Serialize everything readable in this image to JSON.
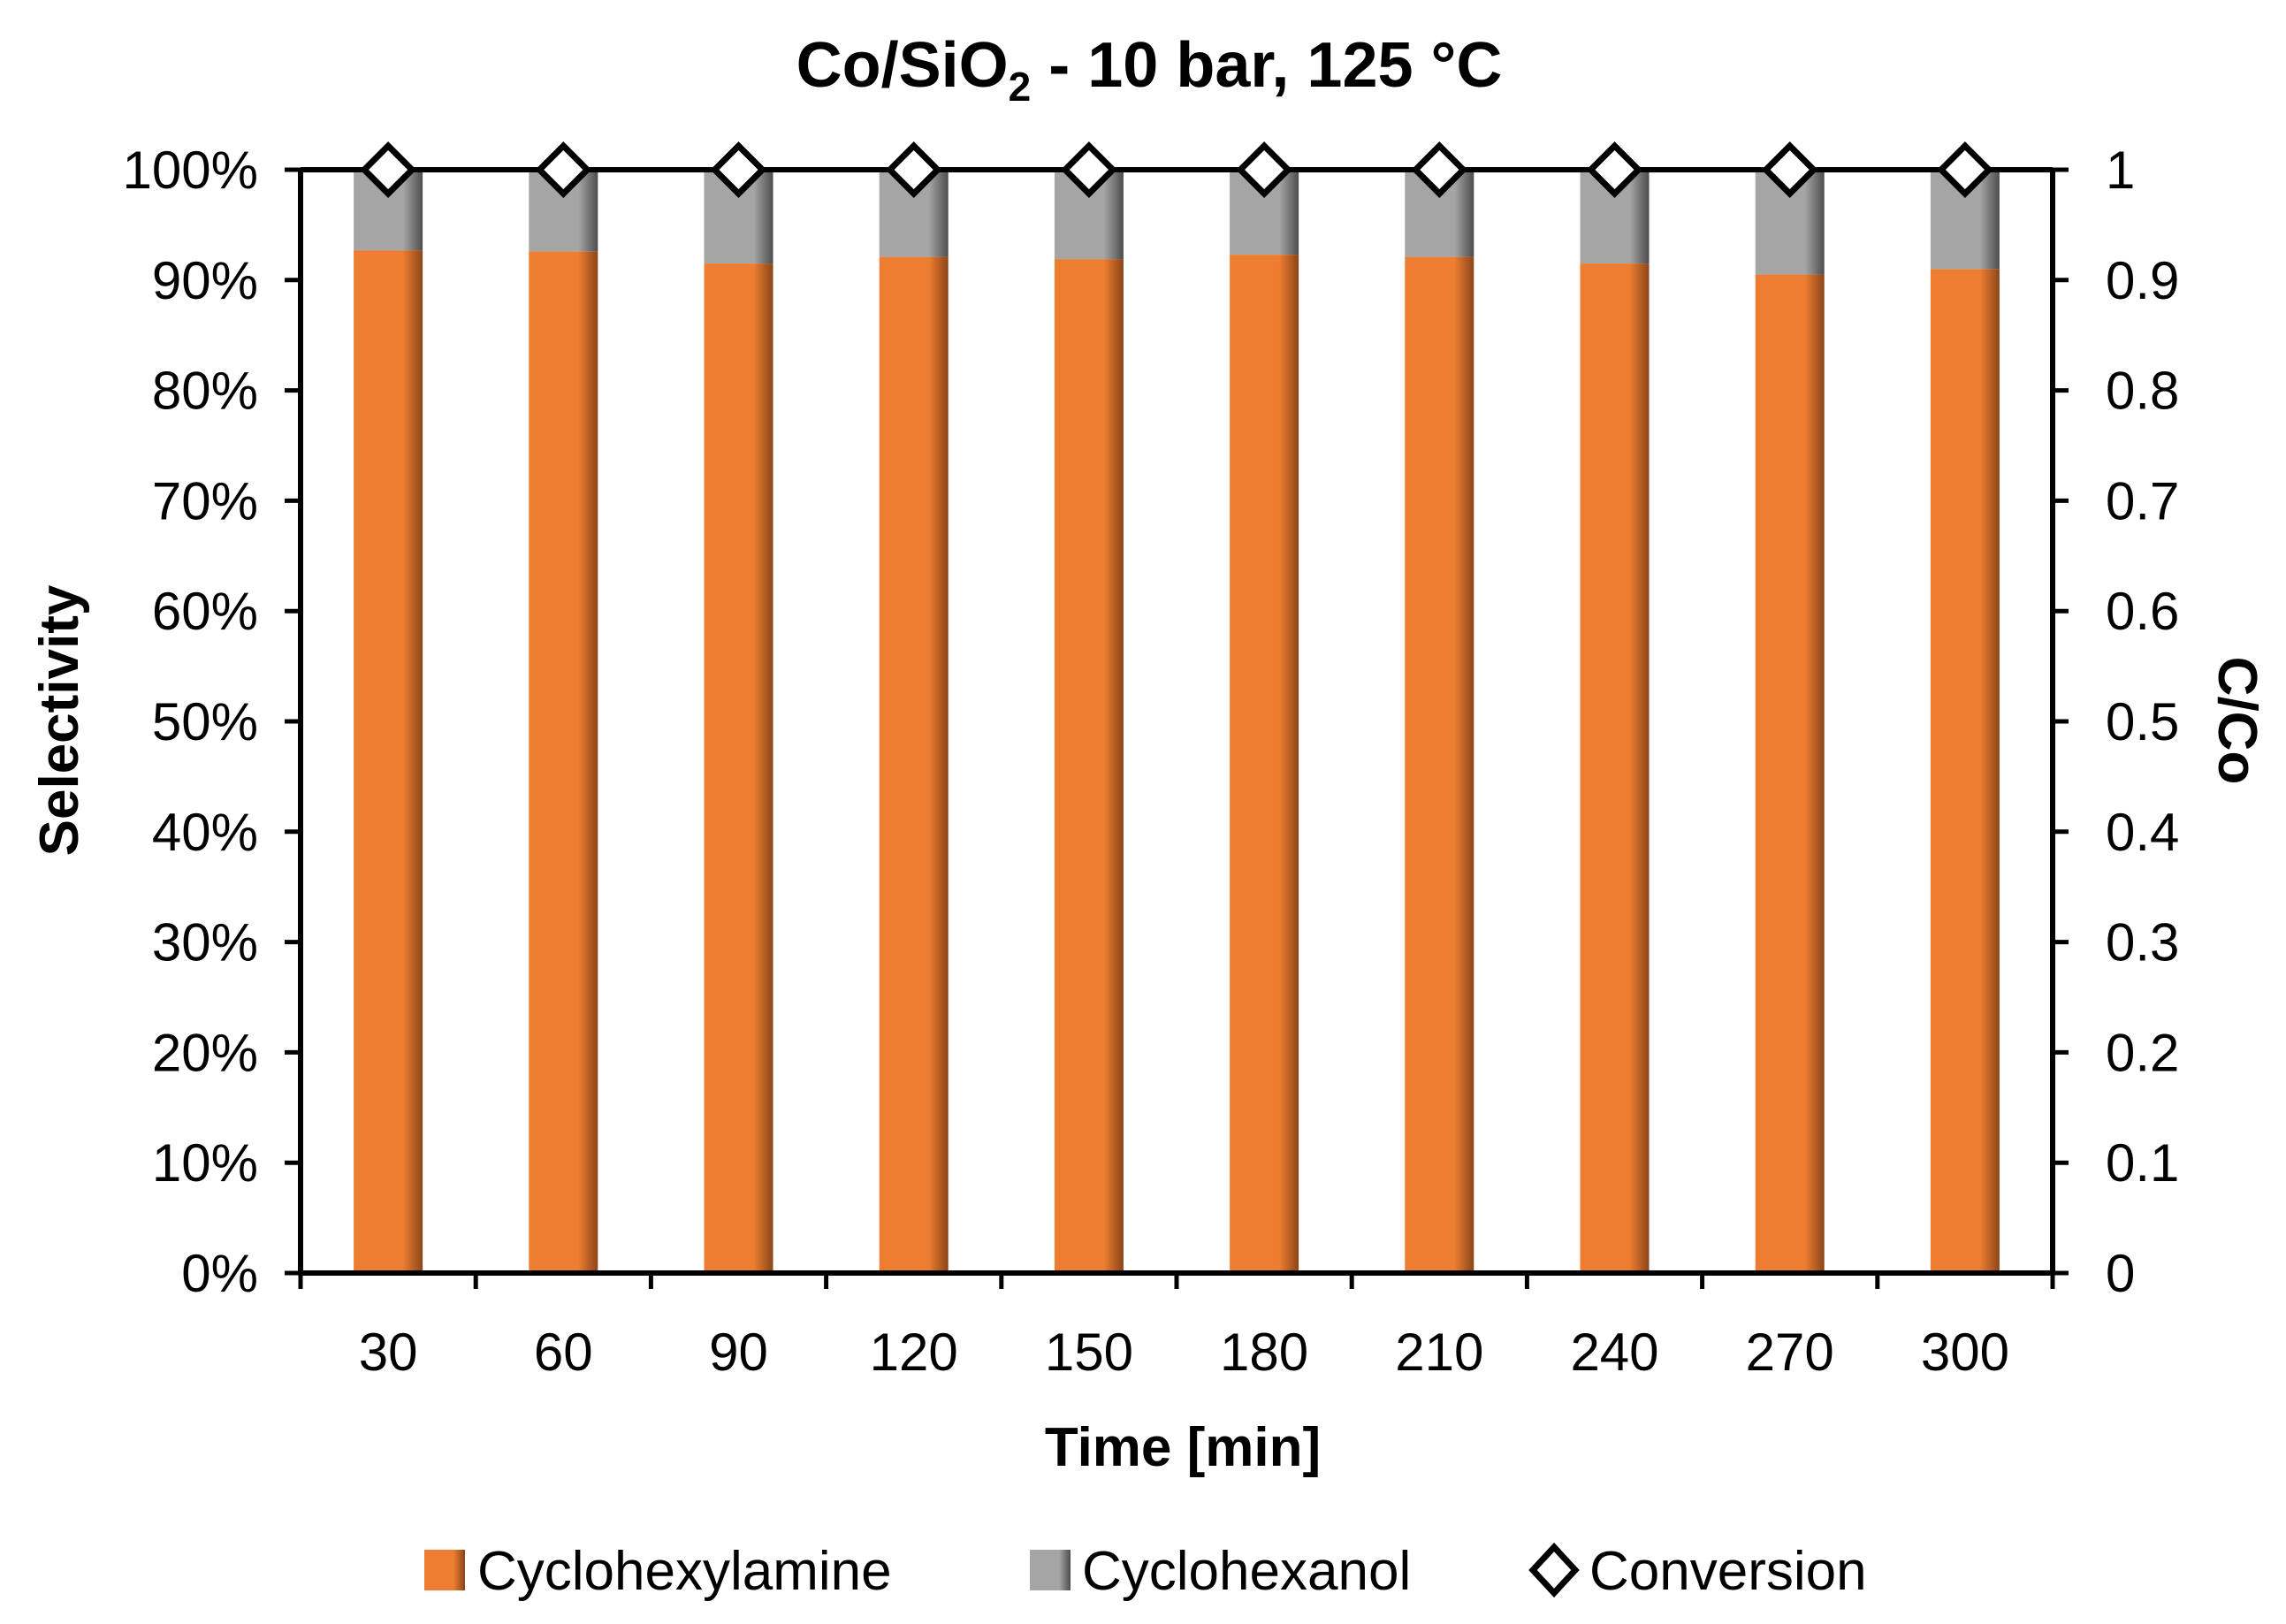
{
  "chart_data": {
    "type": "bar",
    "stacked": true,
    "title_main": "Co/SiO",
    "title_sub": "2",
    "title_rest": " - 10 bar, 125 °C",
    "xlabel": "Time [min]",
    "ylabel": "Selectivity",
    "y2label": "C/Co",
    "categories": [
      "30",
      "60",
      "90",
      "120",
      "150",
      "180",
      "210",
      "240",
      "270",
      "300"
    ],
    "ylim": [
      0,
      100
    ],
    "y2lim": [
      0,
      1
    ],
    "yticks": [
      "0%",
      "10%",
      "20%",
      "30%",
      "40%",
      "50%",
      "60%",
      "70%",
      "80%",
      "90%",
      "100%"
    ],
    "y2ticks": [
      "0",
      "0.1",
      "0.2",
      "0.3",
      "0.4",
      "0.5",
      "0.6",
      "0.7",
      "0.8",
      "0.9",
      "1"
    ],
    "series": [
      {
        "name": "Cyclohexylamine",
        "kind": "bar",
        "axis": "left",
        "color": "#ED7D31",
        "values": [
          92.7,
          92.6,
          91.5,
          92.1,
          91.9,
          92.3,
          92.1,
          91.5,
          90.5,
          91.0
        ]
      },
      {
        "name": "Cyclohexanol",
        "kind": "bar",
        "axis": "left",
        "color": "#A5A5A5",
        "values": [
          7.3,
          7.4,
          8.5,
          7.9,
          8.1,
          7.7,
          7.9,
          8.5,
          9.5,
          9.0
        ]
      },
      {
        "name": "Conversion",
        "kind": "marker",
        "marker": "diamond",
        "axis": "right",
        "color": "#000000",
        "values": [
          1,
          1,
          1,
          1,
          1,
          1,
          1,
          1,
          1,
          1
        ]
      }
    ],
    "legend": [
      "Cyclohexylamine",
      "Cyclohexanol",
      "Conversion"
    ],
    "legend_position": "bottom"
  }
}
